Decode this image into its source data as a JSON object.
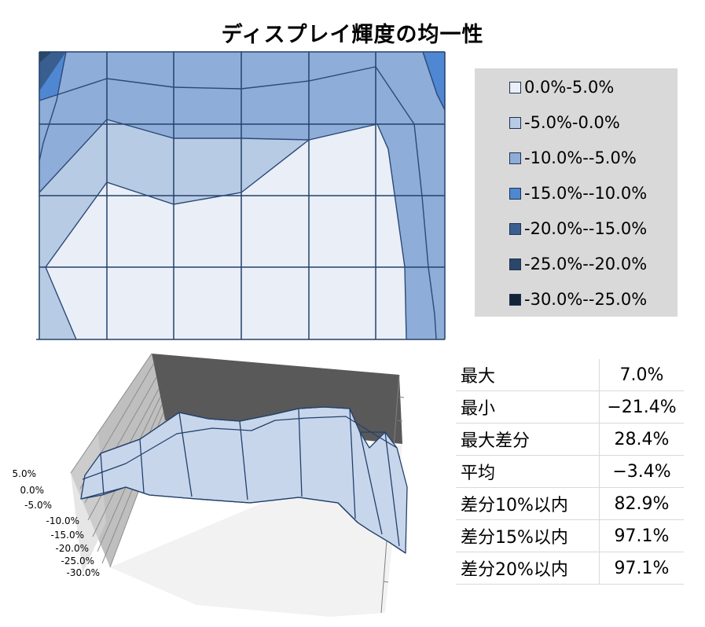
{
  "title": "ディスプレイ輝度の均一性",
  "colors": {
    "band_0_5": "#e9eef7",
    "band_m5_0": "#b8cbe4",
    "band_m10_m5": "#8eadd8",
    "band_m15_m10": "#4f87d2",
    "band_m20_m15": "#3a5e90",
    "band_m25_m20": "#2a4668",
    "band_m30_m25": "#142338",
    "grid": "#23416a",
    "legend_bg": "#d9d9d9"
  },
  "legend": {
    "items": [
      {
        "label": "0.0%-5.0%",
        "color": "#e9eef7"
      },
      {
        "label": "-5.0%-0.0%",
        "color": "#b8cbe4"
      },
      {
        "label": "-10.0%--5.0%",
        "color": "#8eadd8"
      },
      {
        "label": "-15.0%--10.0%",
        "color": "#4f87d2"
      },
      {
        "label": "-20.0%--15.0%",
        "color": "#3a5e90"
      },
      {
        "label": "-25.0%--20.0%",
        "color": "#2a4668"
      },
      {
        "label": "-30.0%--25.0%",
        "color": "#142338"
      }
    ]
  },
  "chart_data": [
    {
      "type": "contour",
      "grid_columns": 7,
      "grid_rows": 5,
      "bands": [
        "0.0%-5.0%",
        "-5.0%-0.0%",
        "-10.0%--5.0%",
        "-15.0%--10.0%",
        "-20.0%--15.0%",
        "-25.0%--20.0%",
        "-30.0%--25.0%"
      ],
      "gridlines": true,
      "legend_position": "right"
    },
    {
      "type": "surface",
      "z_axis_ticks": [
        "5.0%",
        "0.0%",
        "-5.0%",
        "-10.0%",
        "-15.0%",
        "-20.0%",
        "-25.0%",
        "-30.0%"
      ],
      "zlim": [
        -30,
        5
      ]
    }
  ],
  "stats": {
    "rows": [
      {
        "label": "最大",
        "value": "7.0%"
      },
      {
        "label": "最小",
        "value": "−21.4%"
      },
      {
        "label": "最大差分",
        "value": "28.4%"
      },
      {
        "label": "平均",
        "value": "−3.4%"
      },
      {
        "label": "差分10%以内",
        "value": "82.9%"
      },
      {
        "label": "差分15%以内",
        "value": "97.1%"
      },
      {
        "label": "差分20%以内",
        "value": "97.1%"
      }
    ]
  }
}
